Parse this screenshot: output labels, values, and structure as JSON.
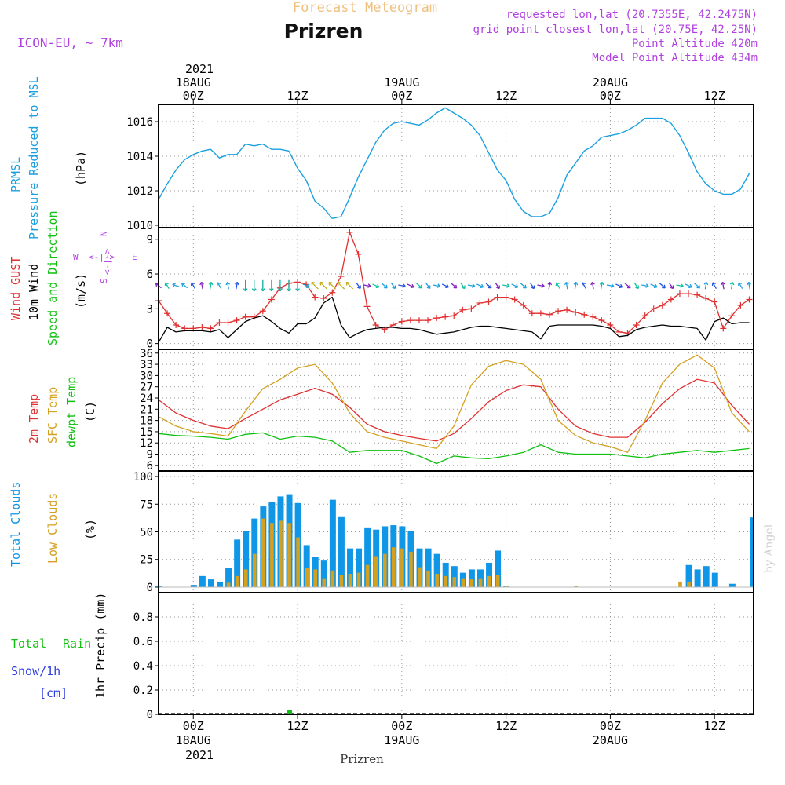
{
  "header": {
    "super_title": "Forecast Meteogram",
    "station": "Prizren",
    "model": "ICON-EU, ~ 7km",
    "requested": "requested lon,lat (20.7355E, 42.2475N)",
    "grid_point": "grid point closest lon,lat (20.75E, 42.25N)",
    "point_alt": "Point Altitude 420m",
    "model_alt": "Model Point Altitude 434m"
  },
  "time_axis": {
    "year": "2021",
    "ticks": [
      {
        "h": 0,
        "top": "00Z",
        "date": "18AUG"
      },
      {
        "h": 12,
        "top": "12Z",
        "date": ""
      },
      {
        "h": 24,
        "top": "00Z",
        "date": "19AUG"
      },
      {
        "h": 36,
        "top": "12Z",
        "date": ""
      },
      {
        "h": 48,
        "top": "00Z",
        "date": "20AUG"
      },
      {
        "h": 60,
        "top": "12Z",
        "date": ""
      }
    ],
    "xlabel": "Prizren"
  },
  "labels": {
    "p1": [
      "PRMSL",
      "Pressure Reduced to MSL",
      "(hPa)"
    ],
    "p2": [
      "Wind GUST",
      "10m Wind",
      "Speed and Direction",
      "(m/s)"
    ],
    "p3": [
      "2m Temp",
      "SFC Temp",
      "dewpt Temp",
      "(C)"
    ],
    "p4": [
      "Total Clouds",
      "Low Clouds",
      "(%)"
    ],
    "p5": [
      "Total",
      "Rain",
      "Snow/1h",
      "[cm]",
      "1hr Precip (mm)"
    ],
    "compass": [
      "N",
      "S",
      "W",
      "E"
    ],
    "watermark": "by Angel"
  },
  "colors": {
    "pressure": "#1aa0e0",
    "gust": "#e03030",
    "wind": "#000000",
    "t2m": "#e03030",
    "sfc": "#d4a020",
    "dewpt": "#10c010",
    "total_cloud": "#1096e6",
    "low_cloud": "#d4a020",
    "rain": "#10c010",
    "snow": "#3040e0",
    "title": "#f0c080",
    "meta": "#b040e0"
  },
  "chart_data": [
    {
      "type": "line",
      "title": "PRMSL Pressure Reduced to MSL",
      "ylabel": "(hPa)",
      "x_range_hours": [
        -4,
        60
      ],
      "ylim": [
        1010,
        1017
      ],
      "yticks": [
        1010,
        1012,
        1014,
        1016
      ],
      "series": [
        {
          "name": "PRMSL",
          "color": "#1aa0e0",
          "x": [
            -4,
            -3,
            -2,
            -1,
            0,
            1,
            2,
            3,
            4,
            5,
            6,
            7,
            8,
            9,
            10,
            11,
            12,
            13,
            14,
            15,
            16,
            17,
            18,
            19,
            20,
            21,
            22,
            23,
            24,
            25,
            26,
            27,
            28,
            29,
            30,
            31,
            32,
            33,
            34,
            35,
            36,
            37,
            38,
            39,
            40,
            41,
            42,
            43,
            44,
            45,
            46,
            47,
            48,
            49,
            50,
            51,
            52,
            53,
            54,
            55,
            56,
            57,
            58,
            59,
            60,
            61,
            62,
            63,
            64
          ],
          "y": [
            1011.5,
            1012.4,
            1013.2,
            1013.8,
            1014.1,
            1014.3,
            1014.4,
            1013.9,
            1014.1,
            1014.1,
            1014.7,
            1014.6,
            1014.7,
            1014.4,
            1014.4,
            1014.3,
            1013.3,
            1012.6,
            1011.4,
            1011.0,
            1010.4,
            1010.5,
            1011.6,
            1012.8,
            1013.8,
            1014.8,
            1015.5,
            1015.9,
            1016.0,
            1015.9,
            1015.8,
            1016.1,
            1016.5,
            1016.8,
            1016.5,
            1016.2,
            1015.8,
            1015.2,
            1014.2,
            1013.2,
            1012.6,
            1011.5,
            1010.8,
            1010.5,
            1010.5,
            1010.7,
            1011.6,
            1012.9,
            1013.6,
            1014.3,
            1014.6,
            1015.1,
            1015.2,
            1015.3,
            1015.5,
            1015.8,
            1016.2,
            1016.2,
            1016.2,
            1015.9,
            1015.2,
            1014.2,
            1013.1,
            1012.4,
            1012.0,
            1011.8,
            1011.8,
            1012.1,
            1013.0
          ]
        }
      ]
    },
    {
      "type": "line",
      "title": "Wind GUST / 10m Wind Speed and Direction",
      "ylabel": "(m/s)",
      "ylim": [
        -0.5,
        10
      ],
      "yticks": [
        0,
        3,
        6,
        9
      ],
      "series": [
        {
          "name": "Wind GUST",
          "color": "#e03030",
          "x": [
            -4,
            -3,
            -2,
            -1,
            0,
            1,
            2,
            3,
            4,
            5,
            6,
            7,
            8,
            9,
            10,
            11,
            12,
            13,
            14,
            15,
            16,
            17,
            18,
            19,
            20,
            21,
            22,
            23,
            24,
            25,
            26,
            27,
            28,
            29,
            30,
            31,
            32,
            33,
            34,
            35,
            36,
            37,
            38,
            39,
            40,
            41,
            42,
            43,
            44,
            45,
            46,
            47,
            48,
            49,
            50,
            51,
            52,
            53,
            54,
            55,
            56,
            57,
            58,
            59,
            60,
            61,
            62,
            63,
            64
          ],
          "y": [
            3.7,
            2.6,
            1.6,
            1.3,
            1.3,
            1.4,
            1.3,
            1.8,
            1.8,
            2.0,
            2.3,
            2.3,
            2.8,
            3.8,
            4.8,
            5.2,
            5.3,
            5.1,
            4.0,
            3.9,
            4.4,
            5.8,
            9.6,
            7.7,
            3.2,
            1.6,
            1.2,
            1.6,
            1.9,
            2.0,
            2.0,
            2.0,
            2.2,
            2.3,
            2.4,
            2.9,
            3.0,
            3.5,
            3.6,
            4.0,
            4.0,
            3.8,
            3.3,
            2.6,
            2.6,
            2.5,
            2.8,
            2.9,
            2.7,
            2.5,
            2.3,
            2.0,
            1.6,
            1.0,
            0.9,
            1.6,
            2.4,
            3.0,
            3.3,
            3.8,
            4.3,
            4.3,
            4.2,
            3.9,
            3.6,
            1.3,
            2.4,
            3.3,
            3.8
          ]
        },
        {
          "name": "10m Wind",
          "color": "#000000",
          "x": [
            -4,
            -3,
            -2,
            -1,
            0,
            1,
            2,
            3,
            4,
            5,
            6,
            7,
            8,
            9,
            10,
            11,
            12,
            13,
            14,
            15,
            16,
            17,
            18,
            19,
            20,
            21,
            22,
            23,
            24,
            25,
            26,
            27,
            28,
            29,
            30,
            31,
            32,
            33,
            34,
            35,
            36,
            37,
            38,
            39,
            40,
            41,
            42,
            43,
            44,
            45,
            46,
            47,
            48,
            49,
            50,
            51,
            52,
            53,
            54,
            55,
            56,
            57,
            58,
            59,
            60,
            61,
            62,
            63,
            64
          ],
          "y": [
            0.1,
            1.4,
            1.0,
            1.1,
            1.1,
            1.1,
            1.0,
            1.2,
            0.5,
            1.2,
            1.9,
            2.2,
            2.4,
            1.9,
            1.3,
            0.9,
            1.7,
            1.7,
            2.2,
            3.5,
            4.0,
            1.6,
            0.5,
            0.9,
            1.2,
            1.3,
            1.4,
            1.4,
            1.3,
            1.3,
            1.2,
            1.0,
            0.8,
            0.9,
            1.0,
            1.2,
            1.4,
            1.5,
            1.5,
            1.4,
            1.3,
            1.2,
            1.1,
            1.0,
            0.4,
            1.5,
            1.6,
            1.6,
            1.6,
            1.6,
            1.6,
            1.5,
            1.3,
            0.6,
            0.7,
            1.2,
            1.4,
            1.5,
            1.6,
            1.5,
            1.5,
            1.4,
            1.3,
            0.3,
            1.9,
            2.2,
            1.7,
            1.8,
            1.8
          ]
        }
      ],
      "arrows_count": 69
    },
    {
      "type": "line",
      "title": "2m Temp / SFC Temp / dewpt Temp",
      "ylabel": "(C)",
      "ylim": [
        4.5,
        37
      ],
      "yticks": [
        6,
        9,
        12,
        15,
        18,
        21,
        24,
        27,
        30,
        33,
        36
      ],
      "series": [
        {
          "name": "2m Temp",
          "color": "#e03030",
          "x": [
            -4,
            -2,
            0,
            2,
            4,
            6,
            8,
            10,
            12,
            14,
            16,
            18,
            20,
            22,
            24,
            26,
            28,
            30,
            32,
            34,
            36,
            38,
            40,
            42,
            44,
            46,
            48,
            50,
            52,
            54,
            56,
            58,
            60,
            62,
            64
          ],
          "y": [
            23.5,
            20.0,
            18.0,
            16.5,
            15.8,
            18.5,
            21.0,
            23.5,
            25.0,
            26.6,
            25.0,
            21.5,
            17.0,
            15.0,
            14.0,
            13.2,
            12.5,
            14.5,
            18.5,
            23.0,
            26.0,
            27.5,
            27.0,
            21.0,
            16.5,
            14.5,
            13.5,
            13.5,
            17.5,
            22.5,
            26.5,
            29.0,
            28.0,
            22.0,
            17.0
          ]
        },
        {
          "name": "SFC Temp",
          "color": "#d4a020",
          "x": [
            -4,
            -2,
            0,
            2,
            4,
            6,
            8,
            10,
            12,
            14,
            16,
            18,
            20,
            22,
            24,
            26,
            28,
            30,
            32,
            34,
            36,
            38,
            40,
            42,
            44,
            46,
            48,
            50,
            52,
            54,
            56,
            58,
            60,
            62,
            64
          ],
          "y": [
            19.0,
            16.5,
            15.0,
            14.5,
            13.8,
            20.5,
            26.5,
            29.0,
            32.0,
            33.0,
            28.0,
            20.0,
            15.0,
            13.5,
            12.5,
            11.5,
            10.5,
            16.5,
            27.5,
            32.5,
            34.0,
            33.0,
            29.0,
            18.0,
            14.0,
            12.0,
            11.0,
            9.5,
            18.0,
            28.0,
            33.0,
            35.5,
            32.0,
            20.0,
            15.0
          ]
        },
        {
          "name": "dewpt Temp",
          "color": "#10c010",
          "x": [
            -4,
            -2,
            0,
            2,
            4,
            6,
            8,
            10,
            12,
            14,
            16,
            18,
            20,
            22,
            24,
            26,
            28,
            30,
            32,
            34,
            36,
            38,
            40,
            42,
            44,
            46,
            48,
            50,
            52,
            54,
            56,
            58,
            60,
            62,
            64
          ],
          "y": [
            14.5,
            14.0,
            13.8,
            13.5,
            13.0,
            14.3,
            14.7,
            13.0,
            13.8,
            13.5,
            12.5,
            9.5,
            10.0,
            10.0,
            10.0,
            8.5,
            6.5,
            8.5,
            8.0,
            7.8,
            8.5,
            9.5,
            11.5,
            9.5,
            9.0,
            9.0,
            9.0,
            8.5,
            8.0,
            9.0,
            9.5,
            10.0,
            9.5,
            10.0,
            10.5
          ]
        }
      ]
    },
    {
      "type": "bar",
      "title": "Total Clouds / Low Clouds",
      "ylabel": "(%)",
      "ylim": [
        -5,
        105
      ],
      "yticks": [
        0,
        25,
        50,
        75,
        100
      ],
      "x": [
        -4,
        -3,
        -2,
        -1,
        0,
        1,
        2,
        3,
        4,
        5,
        6,
        7,
        8,
        9,
        10,
        11,
        12,
        13,
        14,
        15,
        16,
        17,
        18,
        19,
        20,
        21,
        22,
        23,
        24,
        25,
        26,
        27,
        28,
        29,
        30,
        31,
        32,
        33,
        34,
        35,
        36,
        37,
        38,
        39,
        40,
        41,
        42,
        43,
        44,
        45,
        46,
        47,
        48,
        49,
        50,
        51,
        52,
        53,
        54,
        55,
        56,
        57,
        58,
        59,
        60,
        61,
        62,
        63,
        64
      ],
      "series": [
        {
          "name": "Total Clouds",
          "color": "#1096e6",
          "values": [
            1,
            0,
            0,
            0,
            2,
            10,
            7,
            5,
            17,
            43,
            51,
            62,
            73,
            77,
            82,
            84,
            76,
            38,
            27,
            24,
            79,
            64,
            35,
            35,
            54,
            52,
            55,
            56,
            55,
            51,
            35,
            35,
            30,
            22,
            19,
            13,
            16,
            16,
            22,
            33,
            1,
            0,
            0,
            0,
            0,
            0,
            0,
            0,
            0,
            0,
            0,
            0,
            0,
            0,
            0,
            0,
            0,
            0,
            0,
            0,
            0,
            20,
            16,
            19,
            13,
            0,
            3,
            0,
            0
          ]
        },
        {
          "name": "Low Clouds",
          "color": "#d4a020",
          "values": [
            0,
            0,
            0,
            0,
            0,
            0,
            0,
            0,
            4,
            10,
            16,
            30,
            62,
            58,
            60,
            58,
            45,
            17,
            16,
            8,
            15,
            11,
            12,
            13,
            20,
            28,
            30,
            36,
            35,
            32,
            18,
            15,
            12,
            10,
            9,
            8,
            7,
            8,
            10,
            11,
            1,
            0,
            0,
            0,
            0,
            0,
            0,
            0,
            1,
            0,
            0,
            0,
            0,
            0,
            0,
            0,
            0,
            0,
            0,
            0,
            5,
            5,
            0,
            0,
            0,
            0,
            0,
            0,
            0
          ]
        }
      ],
      "partial_last_bar": {
        "x": 64.5,
        "value": 63
      }
    },
    {
      "type": "bar",
      "title": "1hr Precip (mm)",
      "ylabel": "1hr Precip (mm)",
      "ylim": [
        0,
        1.0
      ],
      "yticks": [
        0,
        0.2,
        0.4,
        0.6,
        0.8
      ],
      "series": [
        {
          "name": "Total Rain",
          "color": "#10c010",
          "x": [
            11
          ],
          "values": [
            0.02
          ]
        }
      ]
    }
  ]
}
